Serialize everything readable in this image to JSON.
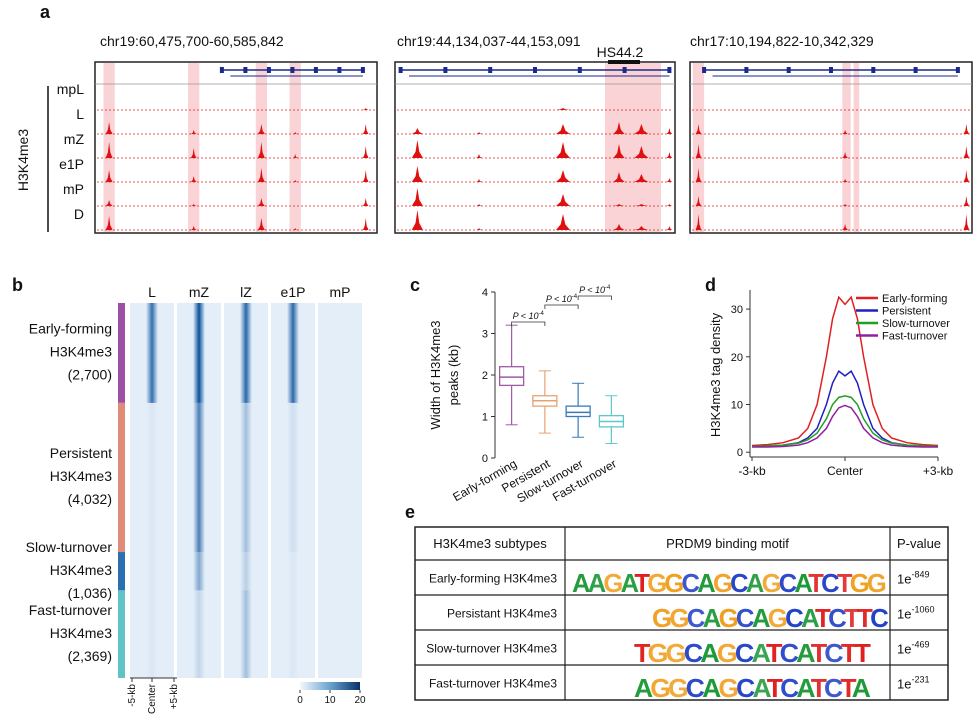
{
  "panel_a": {
    "label": "a",
    "loci": [
      "chr19:60,475,700-60,585,842",
      "chr19:44,134,037-44,153,091",
      "chr17:10,194,822-10,342,329"
    ],
    "annotation": "HS44.2",
    "ylabel": "H3K4me3",
    "tracks": [
      "mpL",
      "L",
      "mZ",
      "e1P",
      "mP",
      "D"
    ]
  },
  "panel_b": {
    "label": "b",
    "columns": [
      "L",
      "mZ",
      "lZ",
      "e1P",
      "mP"
    ],
    "groups": [
      {
        "lines": [
          "Early-forming",
          "H3K4me3"
        ],
        "count": 2700,
        "count_label": "(2,700)",
        "color": "#9d4fa5"
      },
      {
        "lines": [
          "Persistent",
          "H3K4me3"
        ],
        "count": 4032,
        "count_label": "(4,032)",
        "color": "#e08a78"
      },
      {
        "lines": [
          "Slow-turnover",
          "H3K4me3"
        ],
        "count": 1036,
        "count_label": "(1,036)",
        "color": "#2c6fb0"
      },
      {
        "lines": [
          "Fast-turnover",
          "H3K4me3"
        ],
        "count": 2369,
        "count_label": "(2,369)",
        "color": "#5fc3c8"
      }
    ],
    "xlabels": [
      "-5-kb",
      "Center",
      "+5-kb"
    ],
    "colorbar_ticks": [
      0,
      10,
      20
    ],
    "colorbar_lim": [
      0,
      20
    ]
  },
  "chart_data": [
    {
      "type": "box",
      "label": "c",
      "ylabel": [
        "Width of H3K4me3",
        "peaks (kb)"
      ],
      "categories": [
        "Early-forming",
        "Persistent",
        "Slow-turnover",
        "Fast-turnover"
      ],
      "colors": [
        "#a05aa8",
        "#e8a070",
        "#3a7ab8",
        "#5ec8c8"
      ],
      "boxes": [
        {
          "min": 0.8,
          "q1": 1.75,
          "median": 1.95,
          "q3": 2.2,
          "max": 3.2
        },
        {
          "min": 0.6,
          "q1": 1.25,
          "median": 1.38,
          "q3": 1.5,
          "max": 2.1
        },
        {
          "min": 0.5,
          "q1": 1.0,
          "median": 1.1,
          "q3": 1.25,
          "max": 1.8
        },
        {
          "min": 0.35,
          "q1": 0.75,
          "median": 0.88,
          "q3": 1.02,
          "max": 1.5
        }
      ],
      "ylim": [
        0,
        4
      ],
      "yticks": [
        0,
        1,
        2,
        3,
        4
      ],
      "annotations": [
        {
          "text": "P < 10",
          "exp": "-4"
        },
        {
          "text": "P < 10",
          "exp": "-4"
        },
        {
          "text": "P < 10",
          "exp": "-4"
        }
      ]
    },
    {
      "type": "line",
      "label": "d",
      "ylabel": "H3K4me3 tag density",
      "x": [
        -3,
        -2.5,
        -2,
        -1.5,
        -1.2,
        -0.9,
        -0.6,
        -0.4,
        -0.2,
        0,
        0.2,
        0.4,
        0.6,
        0.9,
        1.2,
        1.5,
        2,
        2.5,
        3
      ],
      "xlim": [
        -3,
        3
      ],
      "xticks": [
        {
          "value": -3,
          "label": "-3-kb"
        },
        {
          "value": 0,
          "label": "Center"
        },
        {
          "value": 3,
          "label": "+3-kb"
        }
      ],
      "ylim": [
        -1,
        34
      ],
      "yticks": [
        0,
        10,
        20,
        30
      ],
      "legend": "top-right",
      "series": [
        {
          "name": "Early-forming",
          "color": "#e02020",
          "values": [
            1.4,
            1.6,
            2,
            3,
            5,
            10,
            20,
            28,
            32.5,
            31,
            32.5,
            28,
            20,
            10,
            5,
            3,
            2,
            1.6,
            1.4
          ]
        },
        {
          "name": "Persistent",
          "color": "#2020c0",
          "values": [
            1.2,
            1.3,
            1.5,
            2,
            3,
            5,
            10,
            14.5,
            17,
            16,
            17,
            14.5,
            10,
            5,
            3,
            2,
            1.5,
            1.3,
            1.2
          ]
        },
        {
          "name": "Slow-turnover",
          "color": "#20a020",
          "values": [
            1.2,
            1.3,
            1.5,
            1.9,
            2.6,
            4,
            7,
            10,
            11.5,
            11.8,
            11.5,
            10,
            7,
            4,
            2.6,
            1.9,
            1.5,
            1.3,
            1.2
          ]
        },
        {
          "name": "Fast-turnover",
          "color": "#9020a0",
          "values": [
            1.1,
            1.1,
            1.2,
            1.5,
            2,
            3,
            5,
            7.5,
            9.3,
            9.8,
            9.3,
            7.5,
            5,
            3,
            2,
            1.5,
            1.2,
            1.1,
            1.1
          ]
        }
      ]
    }
  ],
  "panel_e": {
    "label": "e",
    "headers": [
      "H3K4me3 subtypes",
      "PRDM9 binding motif",
      "P-value"
    ],
    "rows": [
      {
        "subtype": "Early-forming H3K4me3",
        "motif": "AAGATGGCAGCAGCATCTGG",
        "pvalue": "1e",
        "exp": "-849"
      },
      {
        "subtype": "Persistant H3K4me3",
        "motif": "GGCAGCAGCATCTTC",
        "pvalue": "1e",
        "exp": "-1060"
      },
      {
        "subtype": "Slow-turnover H3K4me3",
        "motif": "TGGCAGCATCATCTT",
        "pvalue": "1e",
        "exp": "-469"
      },
      {
        "subtype": "Fast-turnover H3K4me3",
        "motif": "AGGCAGCATCATCTA",
        "pvalue": "1e",
        "exp": "-231"
      }
    ]
  }
}
